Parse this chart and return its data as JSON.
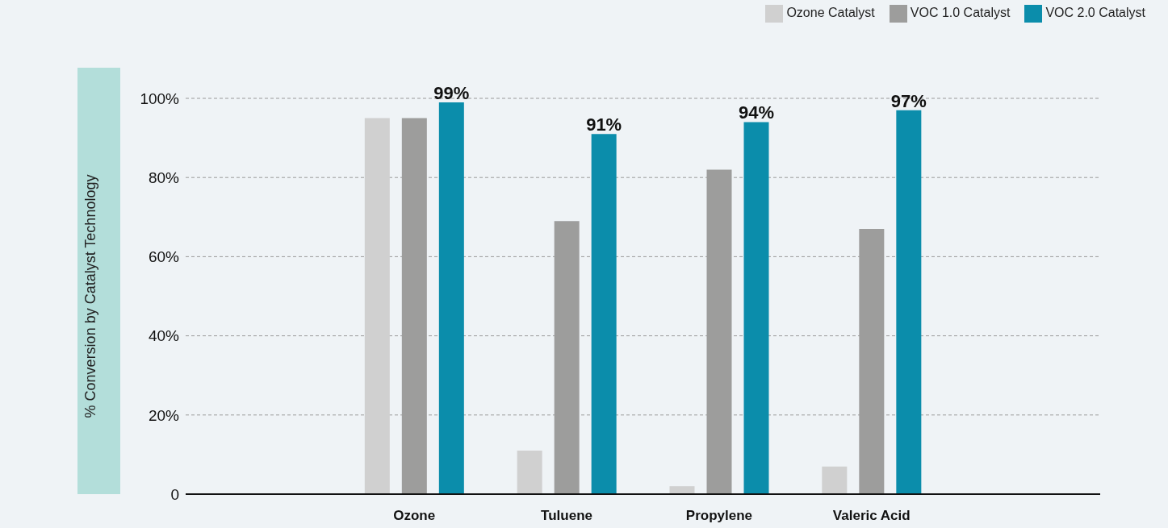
{
  "chart_data": {
    "type": "bar",
    "ylabel": "% Conversion by Catalyst Technology",
    "categories": [
      null,
      "Ozone",
      "Tuluene",
      "Propylene",
      "Valeric Acid",
      null
    ],
    "series": [
      {
        "name": "Ozone Catalyst",
        "color": "#d0d0d0",
        "values": [
          null,
          95,
          11,
          2,
          7,
          null
        ]
      },
      {
        "name": "VOC 1.0 Catalyst",
        "color": "#9d9d9c",
        "values": [
          null,
          95,
          69,
          82,
          67,
          null
        ]
      },
      {
        "name": "VOC 2.0 Catalyst",
        "color": "#0b8dab",
        "values": [
          null,
          99,
          91,
          94,
          97,
          null
        ],
        "value_labels": [
          null,
          "99%",
          "91%",
          "94%",
          "97%",
          null
        ]
      }
    ],
    "ylim": [
      0,
      100
    ],
    "yticks": [
      {
        "value": 0,
        "label": "0"
      },
      {
        "value": 20,
        "label": "20%"
      },
      {
        "value": 40,
        "label": "40%"
      },
      {
        "value": 60,
        "label": "60%"
      },
      {
        "value": 80,
        "label": "80%"
      },
      {
        "value": 100,
        "label": "100%"
      }
    ],
    "grid": "y",
    "legend": "top right"
  }
}
